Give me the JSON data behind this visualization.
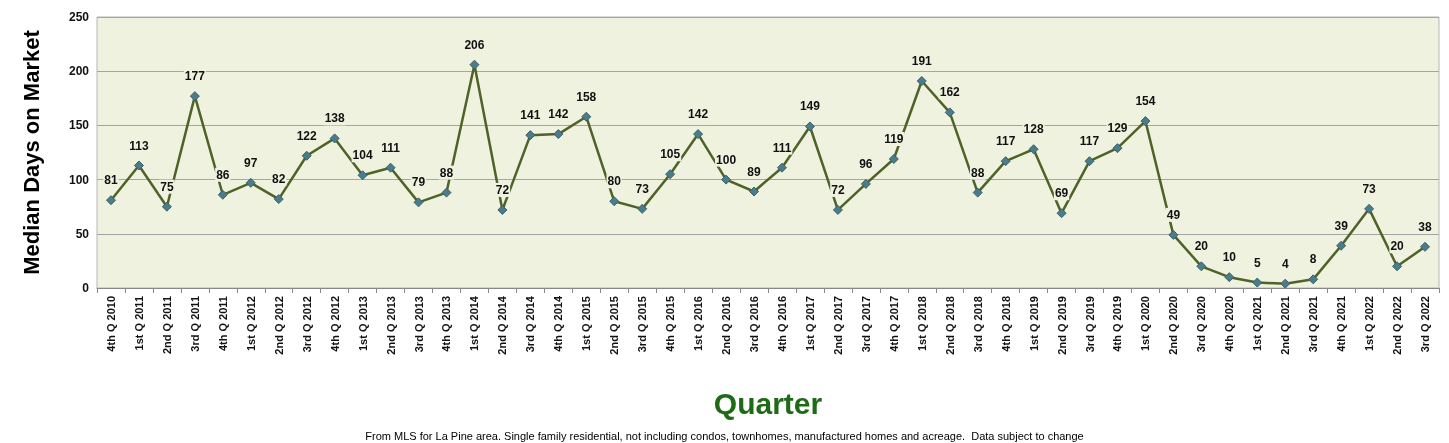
{
  "chart_data": {
    "type": "line",
    "xlabel": "Quarter",
    "ylabel": "Median Days on Market",
    "categories": [
      "4th Q 2010",
      "1st Q 2011",
      "2nd Q 2011",
      "3rd Q 2011",
      "4th Q 2011",
      "1st Q 2012",
      "2nd Q 2012",
      "3rd Q 2012",
      "4th Q 2012",
      "1st Q 2013",
      "2nd Q 2013",
      "3rd Q 2013",
      "4th Q 2013",
      "1st Q 2014",
      "2nd Q 2014",
      "3rd Q 2014",
      "4th Q 2014",
      "1st Q 2015",
      "2nd Q 2015",
      "3rd Q 2015",
      "4th Q 2015",
      "1st Q 2016",
      "2nd Q 2016",
      "3rd Q 2016",
      "4th Q 2016",
      "1st Q 2017",
      "2nd Q 2017",
      "3rd Q 2017",
      "4th Q 2017",
      "1st Q 2018",
      "2nd Q 2018",
      "3rd Q 2018",
      "4th Q 2018",
      "1st Q 2019",
      "2nd Q 2019",
      "3rd Q 2019",
      "4th Q 2019",
      "1st Q 2020",
      "2nd Q 2020",
      "3rd Q 2020",
      "4th Q 2020",
      "1st Q 2021",
      "2nd Q 2021",
      "3rd Q 2021",
      "4th Q 2021",
      "1st Q 2022",
      "2nd Q 2022",
      "3rd Q 2022"
    ],
    "series": [
      {
        "color": "#4f6228",
        "values": [
          81,
          113,
          75,
          177,
          86,
          97,
          82,
          122,
          138,
          104,
          111,
          79,
          88,
          206,
          72,
          141,
          142,
          158,
          80,
          73,
          105,
          142,
          100,
          89,
          111,
          149,
          72,
          96,
          119,
          191,
          162,
          88,
          117,
          128,
          69,
          117,
          129,
          154,
          49,
          20,
          10,
          5,
          4,
          8,
          39,
          73,
          20,
          38
        ]
      }
    ],
    "ylim": [
      0,
      250
    ],
    "yticks": [
      0,
      50,
      100,
      150,
      200,
      250
    ],
    "grid": "y",
    "marker": "diamond",
    "line_style": "solid",
    "data_labels": true,
    "annotations": [
      "From MLS for La Pine area. Single family residential, not including condos, townhomes, manufactured homes and acreage.  Data subject to change"
    ]
  }
}
